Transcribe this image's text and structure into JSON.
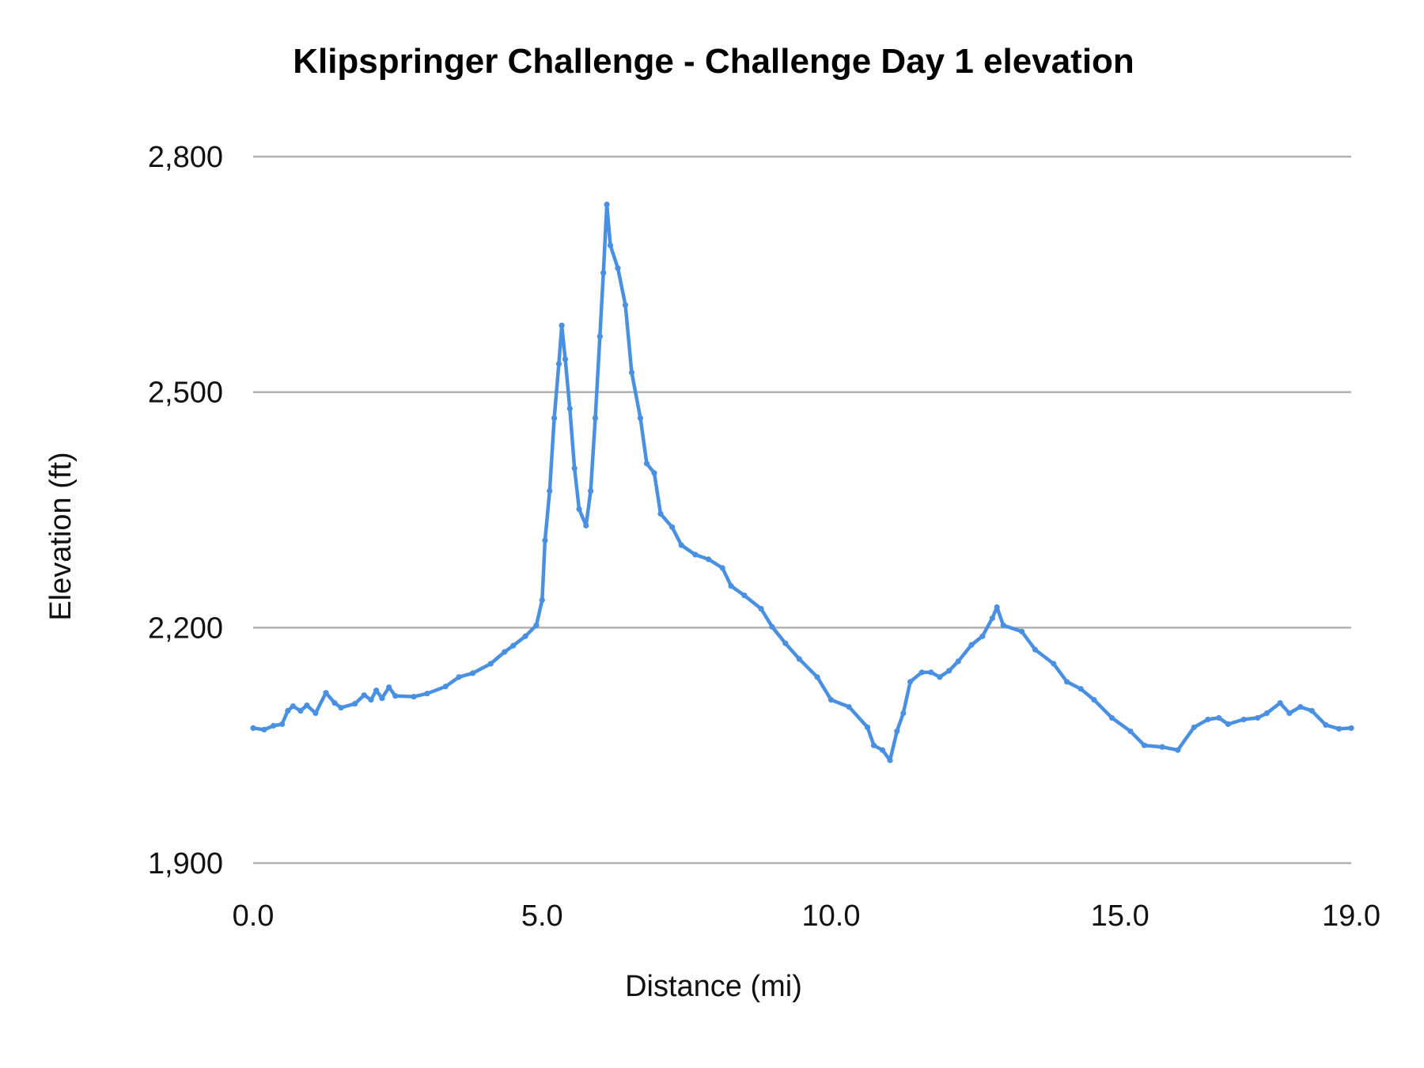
{
  "chart_data": {
    "type": "line",
    "title": "Klipspringer Challenge - Challenge Day 1 elevation",
    "xlabel": "Distance (mi)",
    "ylabel": "Elevation (ft)",
    "xlim": [
      0,
      19
    ],
    "ylim": [
      1900,
      2800
    ],
    "xticks": [
      "0.0",
      "5.0",
      "10.0",
      "15.0",
      "19.0"
    ],
    "xtick_values": [
      0,
      5,
      10,
      15,
      19
    ],
    "yticks": [
      "1,900",
      "2,200",
      "2,500",
      "2,800"
    ],
    "ytick_values": [
      1900,
      2200,
      2500,
      2800
    ],
    "grid": "horizontal",
    "markers": true,
    "series_color": "#4a90e2",
    "grid_color": "#b0b0b0",
    "x": [
      0,
      0.19,
      0.35,
      0.5,
      0.6,
      0.69,
      0.82,
      0.93,
      1.08,
      1.26,
      1.41,
      1.52,
      1.76,
      1.92,
      2.04,
      2.13,
      2.23,
      2.35,
      2.46,
      2.78,
      3.01,
      3.33,
      3.56,
      3.8,
      4.11,
      4.35,
      4.5,
      4.71,
      4.9,
      5.0,
      5.05,
      5.13,
      5.21,
      5.29,
      5.34,
      5.4,
      5.48,
      5.56,
      5.64,
      5.76,
      5.84,
      5.92,
      6.0,
      6.06,
      6.12,
      6.18,
      6.31,
      6.44,
      6.55,
      6.7,
      6.81,
      6.94,
      7.05,
      7.25,
      7.41,
      7.65,
      7.88,
      8.12,
      8.27,
      8.5,
      8.79,
      8.98,
      9.21,
      9.45,
      9.76,
      10.0,
      10.31,
      10.63,
      10.74,
      10.89,
      11.02,
      11.14,
      11.25,
      11.37,
      11.57,
      11.73,
      11.88,
      12.04,
      12.2,
      12.43,
      12.62,
      12.79,
      12.87,
      12.98,
      13.3,
      13.53,
      13.85,
      14.08,
      14.32,
      14.55,
      14.86,
      15.18,
      15.42,
      15.73,
      16.0,
      16.28,
      16.52,
      16.71,
      16.87,
      17.14,
      17.38,
      17.54,
      17.77,
      17.93,
      18.12,
      18.32,
      18.56,
      18.79,
      19.0
    ],
    "y": [
      2072,
      2070,
      2075,
      2077,
      2094,
      2100,
      2094,
      2101,
      2091,
      2117,
      2104,
      2098,
      2103,
      2114,
      2108,
      2120,
      2110,
      2124,
      2113,
      2112,
      2116,
      2125,
      2137,
      2142,
      2154,
      2169,
      2177,
      2189,
      2203,
      2235,
      2311,
      2374,
      2467,
      2536,
      2585,
      2542,
      2479,
      2403,
      2351,
      2330,
      2374,
      2467,
      2571,
      2652,
      2739,
      2687,
      2658,
      2611,
      2525,
      2467,
      2409,
      2397,
      2345,
      2328,
      2305,
      2293,
      2287,
      2276,
      2253,
      2241,
      2224,
      2201,
      2180,
      2160,
      2137,
      2108,
      2099,
      2073,
      2050,
      2044,
      2031,
      2068,
      2091,
      2131,
      2143,
      2143,
      2137,
      2145,
      2157,
      2178,
      2189,
      2212,
      2226,
      2203,
      2195,
      2172,
      2154,
      2131,
      2122,
      2108,
      2085,
      2068,
      2050,
      2048,
      2044,
      2073,
      2083,
      2085,
      2077,
      2083,
      2085,
      2091,
      2104,
      2091,
      2099,
      2094,
      2076,
      2071,
      2072
    ]
  }
}
